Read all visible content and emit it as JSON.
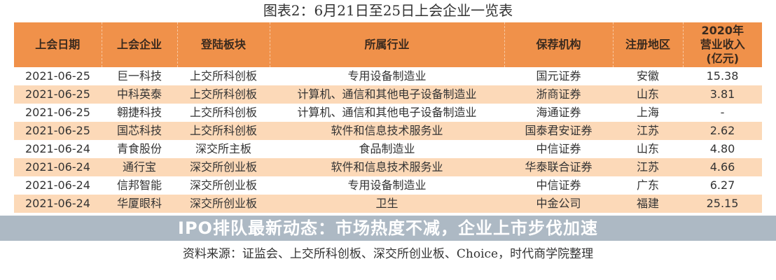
{
  "title": "图表2：6月21日至25日上会企业一览表",
  "headers": [
    "上会日期",
    "上会企业",
    "登陆板块",
    "所属行业",
    "保荐机构",
    "注册地区",
    "2020年营业收入(亿元)"
  ],
  "rows": [
    [
      "2021-06-25",
      "巨一科技",
      "上交所科创板",
      "专用设备制造业",
      "国元证券",
      "安徽",
      "15.38"
    ],
    [
      "2021-06-25",
      "中科英泰",
      "上交所科创板",
      "计算机、通信和其他电子设备制造业",
      "浙商证券",
      "山东",
      "3.81"
    ],
    [
      "2021-06-25",
      "翱捷科技",
      "上交所科创板",
      "计算机、通信和其他电子设备制造业",
      "海通证券",
      "上海",
      "-"
    ],
    [
      "2021-06-25",
      "国芯科技",
      "上交所科创板",
      "软件和信息技术服务业",
      "国泰君安证券",
      "江苏",
      "2.62"
    ],
    [
      "2021-06-24",
      "青食股份",
      "深交所主板",
      "食品制造业",
      "中信证券",
      "山东",
      "4.80"
    ],
    [
      "2021-06-24",
      "通行宝",
      "深交所创业板",
      "软件和信息技术服务业",
      "华泰联合证券",
      "江苏",
      "4.66"
    ],
    [
      "2021-06-24",
      "信邦智能",
      "深交所创业板",
      "专用设备制造业",
      "中信证券",
      "广东",
      "6.27"
    ],
    [
      "2021-06-24",
      "华厦眼科",
      "深交所创业板",
      "卫生",
      "中金公司",
      "福建",
      "25.15"
    ]
  ],
  "banner": "IPO排队最新动态：市场热度不减，企业上市步伐加速",
  "source": "资料来源：证监会、上交所科创板、深交所创业板、Choice，时代商学院整理",
  "colors": {
    "header": "#f0914a",
    "alt_row": "#fcd9b8"
  }
}
